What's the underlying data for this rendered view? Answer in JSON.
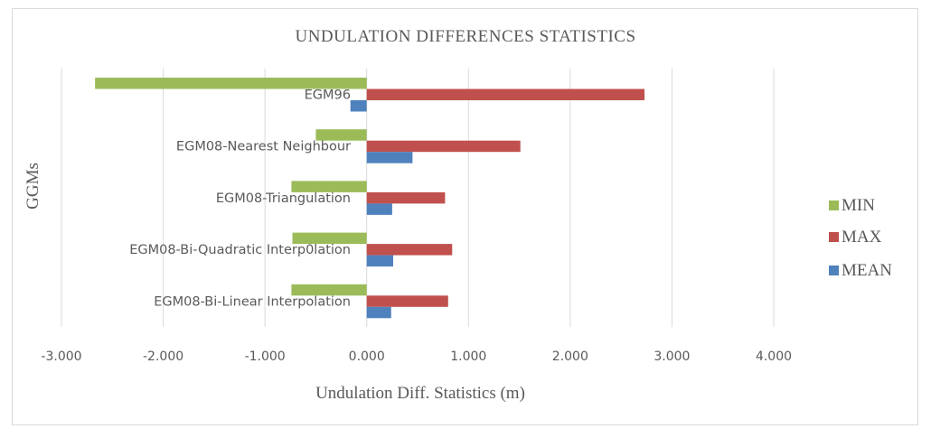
{
  "chart_data": {
    "type": "bar",
    "orientation": "horizontal",
    "title": "UNDULATION DIFFERENCES STATISTICS",
    "xlabel": "Undulation Diff. Statistics (m)",
    "ylabel": "GGMs",
    "xlim": [
      -3.0,
      4.0
    ],
    "xticks": [
      -3,
      -2,
      -1,
      0,
      1,
      2,
      3,
      4
    ],
    "xtick_labels": [
      "-3.000",
      "-2.000",
      "-1.000",
      "0.000",
      "1.000",
      "2.000",
      "3.000",
      "4.000"
    ],
    "grid": "vertical",
    "legend_position": "right",
    "categories": [
      "EGM96",
      "EGM08-Nearest Neighbour",
      "EGM08-Triangulation",
      "EGM08-Bi-Quadratic Interp0lation",
      "EGM08-Bi-Linear Interpolation"
    ],
    "series": [
      {
        "name": "MIN",
        "color": "#9bbb59",
        "values": [
          -2.67,
          -0.5,
          -0.74,
          -0.73,
          -0.74
        ]
      },
      {
        "name": "MAX",
        "color": "#c0504d",
        "values": [
          2.73,
          1.51,
          0.77,
          0.84,
          0.8
        ]
      },
      {
        "name": "MEAN",
        "color": "#4f81bd",
        "values": [
          -0.16,
          0.45,
          0.25,
          0.26,
          0.24
        ]
      }
    ],
    "legend": [
      "MIN",
      "MAX",
      "MEAN"
    ]
  }
}
